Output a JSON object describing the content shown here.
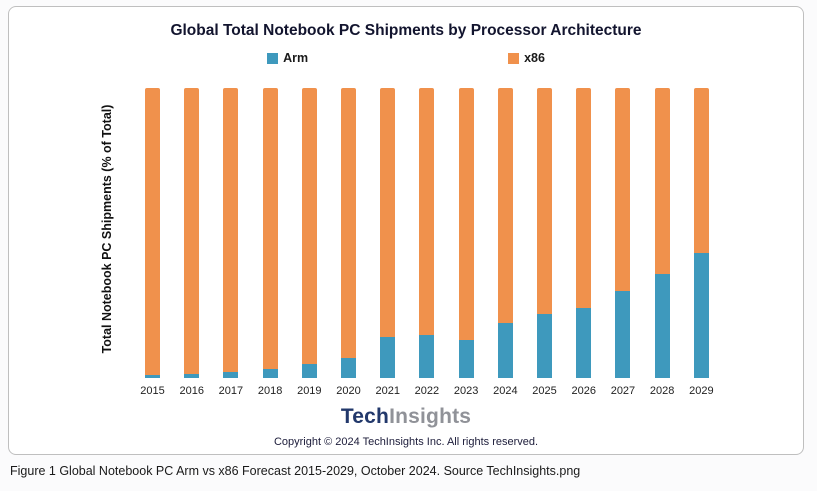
{
  "chart_data": {
    "type": "bar",
    "stacked": true,
    "title": "Global Total Notebook PC Shipments by Processor Architecture",
    "ylabel": "Total Notebook PC Shipments (% of Total)",
    "xlabel": "",
    "ylim": [
      0,
      100
    ],
    "grid": false,
    "legend_position": "top",
    "categories": [
      "2015",
      "2016",
      "2017",
      "2018",
      "2019",
      "2020",
      "2021",
      "2022",
      "2023",
      "2024",
      "2025",
      "2026",
      "2027",
      "2028",
      "2029"
    ],
    "series": [
      {
        "name": "Arm",
        "color": "#3e99bd",
        "values": [
          1,
          1.5,
          2,
          3,
          5,
          7,
          14,
          15,
          13,
          19,
          22,
          24,
          30,
          36,
          43
        ]
      },
      {
        "name": "x86",
        "color": "#f0914c",
        "values": [
          99,
          98.5,
          98,
          97,
          95,
          93,
          86,
          85,
          87,
          81,
          78,
          76,
          70,
          64,
          57
        ]
      }
    ]
  },
  "brand": {
    "part1": "Tech",
    "part2": "Insights"
  },
  "footer": {
    "copyright": "Copyright © 2024 TechInsights Inc.  All rights reserved."
  },
  "figure_caption": "Figure 1 Global Notebook PC Arm vs x86 Forecast 2015-2029, October 2024. Source TechInsights.png"
}
